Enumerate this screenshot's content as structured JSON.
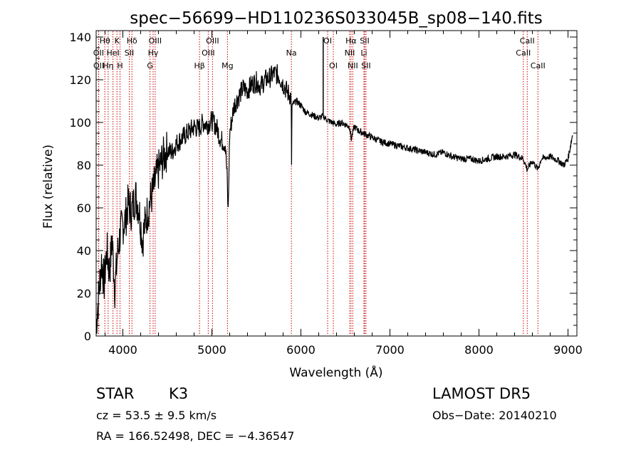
{
  "chart_data": {
    "type": "line",
    "title": "spec−56699−HD110236S033045B_sp08−140.fits",
    "xlabel": "Wavelength (Å)",
    "ylabel": "Flux (relative)",
    "xlim": [
      3700,
      9100
    ],
    "ylim": [
      0,
      143
    ],
    "xticks": [
      4000,
      5000,
      6000,
      7000,
      8000,
      9000
    ],
    "xtick_labels": [
      "4000",
      "5000",
      "6000",
      "7000",
      "8000",
      "9000"
    ],
    "yticks": [
      0,
      20,
      40,
      60,
      80,
      100,
      120,
      140
    ],
    "ytick_labels": [
      "0",
      "20",
      "40",
      "60",
      "80",
      "100",
      "120",
      "140"
    ],
    "grid": false,
    "series": [
      {
        "name": "",
        "color": "#000000",
        "x": [
          3700,
          3730,
          3760,
          3790,
          3820,
          3850,
          3880,
          3910,
          3940,
          3970,
          4000,
          4030,
          4060,
          4100,
          4140,
          4180,
          4220,
          4260,
          4300,
          4340,
          4380,
          4420,
          4460,
          4500,
          4550,
          4600,
          4650,
          4700,
          4750,
          4800,
          4850,
          4900,
          4950,
          5000,
          5050,
          5100,
          5150,
          5170,
          5183,
          5200,
          5250,
          5300,
          5350,
          5400,
          5450,
          5500,
          5550,
          5600,
          5650,
          5700,
          5750,
          5800,
          5850,
          5890,
          5895,
          5900,
          5950,
          6000,
          6050,
          6100,
          6150,
          6200,
          6250,
          6300,
          6350,
          6400,
          6450,
          6500,
          6550,
          6563,
          6600,
          6650,
          6700,
          6800,
          6900,
          7000,
          7100,
          7200,
          7300,
          7400,
          7500,
          7600,
          7700,
          7800,
          7900,
          8000,
          8100,
          8200,
          8300,
          8400,
          8498,
          8542,
          8600,
          8662,
          8700,
          8800,
          8900,
          8950,
          9000,
          9050
        ],
        "y": [
          5,
          20,
          35,
          25,
          40,
          30,
          45,
          22,
          38,
          48,
          52,
          55,
          62,
          58,
          66,
          60,
          45,
          55,
          62,
          68,
          75,
          80,
          84,
          87,
          86,
          90,
          92,
          94,
          96,
          98,
          97,
          100,
          99,
          101,
          98,
          92,
          90,
          75,
          58,
          95,
          108,
          112,
          116,
          115,
          118,
          119,
          117,
          120,
          121,
          123,
          122,
          118,
          114,
          112,
          78,
          108,
          110,
          108,
          105,
          104,
          103,
          102,
          103,
          101,
          100,
          99,
          100,
          99,
          98,
          92,
          98,
          96,
          95,
          93,
          91,
          90,
          89,
          88,
          87,
          86,
          85,
          86,
          84,
          83,
          83,
          82,
          83,
          84,
          84,
          85,
          83,
          78,
          82,
          78,
          83,
          84,
          82,
          80,
          83,
          94
        ]
      }
    ],
    "line_labels": [
      {
        "text": "Hθ",
        "wave": 3798,
        "row": 1
      },
      {
        "text": "K",
        "wave": 3934,
        "row": 1
      },
      {
        "text": "Hδ",
        "wave": 4102,
        "row": 1
      },
      {
        "text": "OIII",
        "wave": 4363,
        "row": 1
      },
      {
        "text": "OIII",
        "wave": 5007,
        "row": 1
      },
      {
        "text": "OI",
        "wave": 6300,
        "row": 1
      },
      {
        "text": "Hα",
        "wave": 6563,
        "row": 1
      },
      {
        "text": "SII",
        "wave": 6716,
        "row": 1
      },
      {
        "text": "CaII",
        "wave": 8542,
        "row": 1
      },
      {
        "text": "OII",
        "wave": 3727,
        "row": 2
      },
      {
        "text": "HeI",
        "wave": 3889,
        "row": 2
      },
      {
        "text": "SII",
        "wave": 4072,
        "row": 2
      },
      {
        "text": "Hγ",
        "wave": 4340,
        "row": 2
      },
      {
        "text": "OIII",
        "wave": 4959,
        "row": 2
      },
      {
        "text": "Na",
        "wave": 5893,
        "row": 2
      },
      {
        "text": "NII",
        "wave": 6548,
        "row": 2
      },
      {
        "text": "Li",
        "wave": 6708,
        "row": 2
      },
      {
        "text": "CaII",
        "wave": 8498,
        "row": 2
      },
      {
        "text": "OII",
        "wave": 3729,
        "row": 3
      },
      {
        "text": "Hη",
        "wave": 3835,
        "row": 3
      },
      {
        "text": "H",
        "wave": 3968,
        "row": 3
      },
      {
        "text": "G",
        "wave": 4305,
        "row": 3
      },
      {
        "text": "Hβ",
        "wave": 4861,
        "row": 3
      },
      {
        "text": "Mg",
        "wave": 5175,
        "row": 3
      },
      {
        "text": "OI",
        "wave": 6364,
        "row": 3
      },
      {
        "text": "NII",
        "wave": 6583,
        "row": 3
      },
      {
        "text": "SII",
        "wave": 6731,
        "row": 3
      },
      {
        "text": "CaII",
        "wave": 8662,
        "row": 3
      }
    ],
    "marker_lines": [
      3727,
      3729,
      3798,
      3835,
      3889,
      3934,
      3968,
      4072,
      4102,
      4305,
      4340,
      4363,
      4861,
      4959,
      5007,
      5175,
      5893,
      6300,
      6364,
      6548,
      6563,
      6583,
      6708,
      6716,
      6731,
      8498,
      8542,
      8662
    ],
    "marker_color": "#cc0000",
    "spike_line": {
      "wave": 6250,
      "y_top": 140
    }
  },
  "info": {
    "object_class": "STAR",
    "subclass": "K3",
    "survey": "LAMOST DR5",
    "cz_text": "cz = 53.5 ± 9.5 km/s",
    "obs_date": "Obs−Date: 20140210",
    "radec": "RA = 166.52498, DEC =  −4.36547"
  }
}
